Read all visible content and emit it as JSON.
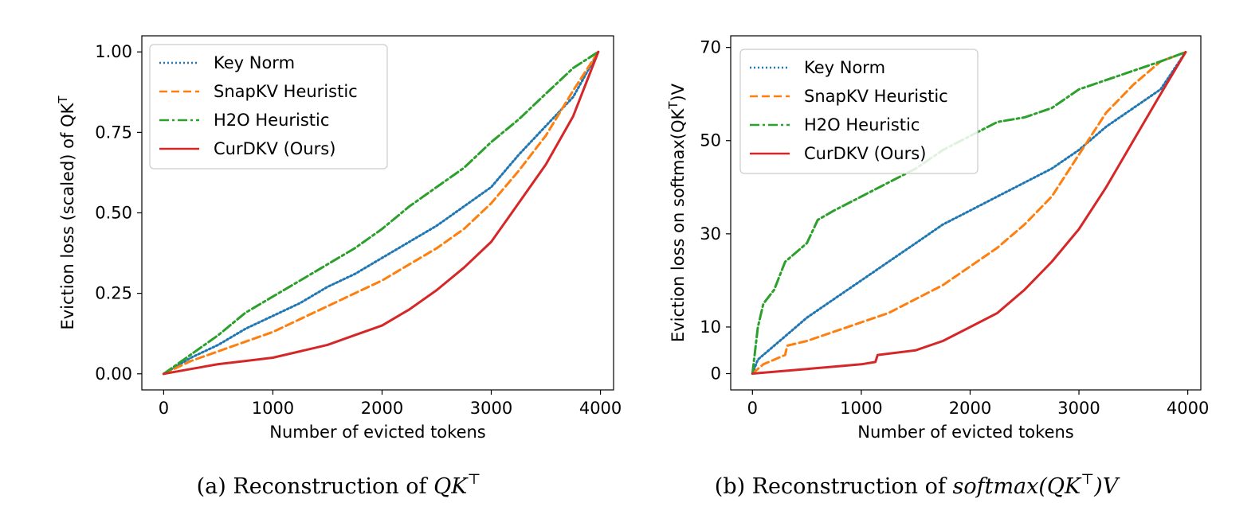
{
  "chart_data": [
    {
      "type": "line",
      "ylabel": "Eviction loss (scaled) of QK",
      "ylabel_sup": "T",
      "xlabel": "Number of evicted tokens",
      "caption_prefix": "(a) Reconstruction of",
      "caption_math": "QK",
      "caption_sup": "⊤",
      "caption_suffix": "",
      "xlim": [
        -200,
        4120
      ],
      "ylim": [
        -0.05,
        1.05
      ],
      "xticks": [
        0,
        1000,
        2000,
        3000,
        4000
      ],
      "xtick_labels": [
        "0",
        "1000",
        "2000",
        "3000",
        "4000"
      ],
      "yticks": [
        0.0,
        0.25,
        0.5,
        0.75,
        1.0
      ],
      "ytick_labels": [
        "0.00",
        "0.25",
        "0.50",
        "0.75",
        "1.00"
      ],
      "legend_position": "upper-left",
      "series": [
        {
          "name": "Key Norm",
          "color": "#1f77b4",
          "dash": "2,3",
          "x": [
            0,
            250,
            500,
            750,
            1000,
            1250,
            1500,
            1750,
            2000,
            2250,
            2500,
            2750,
            3000,
            3250,
            3500,
            3750,
            3980
          ],
          "y": [
            0.0,
            0.05,
            0.09,
            0.14,
            0.18,
            0.22,
            0.27,
            0.31,
            0.36,
            0.41,
            0.46,
            0.52,
            0.58,
            0.68,
            0.77,
            0.86,
            1.0
          ]
        },
        {
          "name": "SnapKV Heuristic",
          "color": "#ff7f0e",
          "dash": "10,5",
          "x": [
            0,
            250,
            500,
            750,
            1000,
            1250,
            1500,
            1750,
            2000,
            2250,
            2500,
            2750,
            3000,
            3250,
            3500,
            3750,
            3980
          ],
          "y": [
            0.0,
            0.04,
            0.07,
            0.1,
            0.13,
            0.17,
            0.21,
            0.25,
            0.29,
            0.34,
            0.39,
            0.45,
            0.53,
            0.63,
            0.74,
            0.88,
            1.0
          ]
        },
        {
          "name": "H2O Heuristic",
          "color": "#2ca02c",
          "dash": "12,4,3,4",
          "x": [
            0,
            250,
            500,
            750,
            1000,
            1250,
            1500,
            1750,
            2000,
            2250,
            2500,
            2750,
            3000,
            3250,
            3500,
            3750,
            3980
          ],
          "y": [
            0.0,
            0.06,
            0.12,
            0.19,
            0.24,
            0.29,
            0.34,
            0.39,
            0.45,
            0.52,
            0.58,
            0.64,
            0.72,
            0.79,
            0.87,
            0.95,
            1.0
          ]
        },
        {
          "name": "CurDKV (Ours)",
          "color": "#d62728",
          "dash": "",
          "x": [
            0,
            250,
            500,
            750,
            1000,
            1250,
            1500,
            1750,
            2000,
            2250,
            2500,
            2750,
            3000,
            3250,
            3500,
            3750,
            3980
          ],
          "y": [
            0.0,
            0.015,
            0.03,
            0.04,
            0.05,
            0.07,
            0.09,
            0.12,
            0.15,
            0.2,
            0.26,
            0.33,
            0.41,
            0.53,
            0.65,
            0.8,
            1.0
          ]
        }
      ]
    },
    {
      "type": "line",
      "ylabel": "Eviction loss on softmax(QK",
      "ylabel_sup": "T",
      "ylabel_tail": ")V",
      "xlabel": "Number of evicted tokens",
      "caption_prefix": "(b) Reconstruction of",
      "caption_math": "softmax(QK",
      "caption_sup": "⊤",
      "caption_suffix": ")V",
      "xlim": [
        -200,
        4120
      ],
      "ylim": [
        -3.5,
        72.5
      ],
      "xticks": [
        0,
        1000,
        2000,
        3000,
        4000
      ],
      "xtick_labels": [
        "0",
        "1000",
        "2000",
        "3000",
        "4000"
      ],
      "yticks": [
        0,
        10,
        30,
        50,
        70
      ],
      "ytick_labels": [
        "0",
        "10",
        "30",
        "50",
        "70"
      ],
      "legend_position": "upper-left",
      "series": [
        {
          "name": "Key Norm",
          "color": "#1f77b4",
          "dash": "2,3",
          "x": [
            0,
            50,
            250,
            500,
            750,
            1000,
            1250,
            1500,
            1750,
            2000,
            2250,
            2500,
            2750,
            3000,
            3250,
            3500,
            3750,
            3980
          ],
          "y": [
            0,
            3,
            7,
            12,
            16,
            20,
            24,
            28,
            32,
            35,
            38,
            41,
            44,
            48,
            53,
            57,
            61,
            69
          ]
        },
        {
          "name": "SnapKV Heuristic",
          "color": "#ff7f0e",
          "dash": "10,5",
          "x": [
            0,
            100,
            300,
            320,
            500,
            750,
            1000,
            1250,
            1500,
            1750,
            2000,
            2250,
            2500,
            2750,
            3000,
            3250,
            3500,
            3750,
            3980
          ],
          "y": [
            0,
            2,
            4,
            6,
            7,
            9,
            11,
            13,
            16,
            19,
            23,
            27,
            32,
            38,
            47,
            56,
            62,
            67,
            69
          ]
        },
        {
          "name": "H2O Heuristic",
          "color": "#2ca02c",
          "dash": "12,4,3,4",
          "x": [
            0,
            50,
            100,
            200,
            300,
            500,
            600,
            750,
            1000,
            1250,
            1500,
            1750,
            2000,
            2250,
            2500,
            2750,
            3000,
            3250,
            3500,
            3750,
            3980
          ],
          "y": [
            0,
            10,
            15,
            18,
            24,
            28,
            33,
            35,
            38,
            41,
            44,
            48,
            51,
            54,
            55,
            57,
            61,
            63,
            65,
            67,
            69
          ]
        },
        {
          "name": "CurDKV (Ours)",
          "color": "#d62728",
          "dash": "",
          "x": [
            0,
            250,
            500,
            750,
            1000,
            1130,
            1150,
            1500,
            1750,
            2000,
            2250,
            2500,
            2750,
            3000,
            3250,
            3500,
            3750,
            3980
          ],
          "y": [
            0,
            0.5,
            1,
            1.5,
            2,
            2.5,
            4,
            5,
            7,
            10,
            13,
            18,
            24,
            31,
            40,
            50,
            60,
            69
          ]
        }
      ]
    }
  ]
}
